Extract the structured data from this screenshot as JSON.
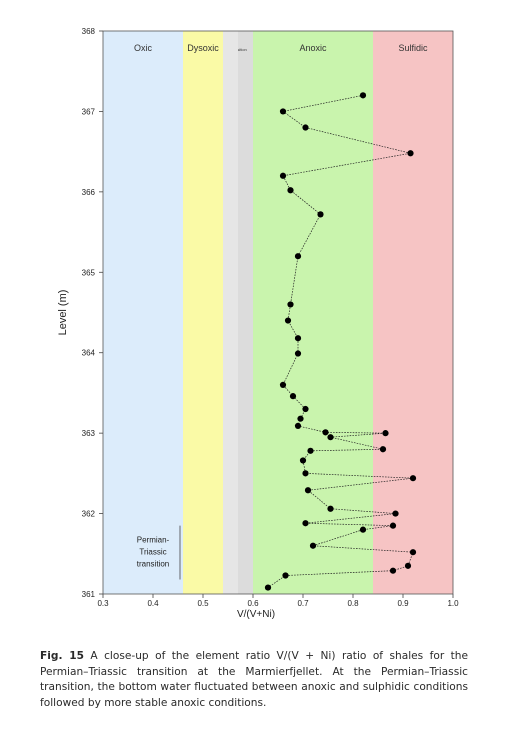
{
  "chart_data": {
    "type": "scatter",
    "ylabel": "Level (m)",
    "xlabel": "V/(V+Ni)",
    "xlim": [
      0.3,
      1.0
    ],
    "ylim": [
      361,
      368
    ],
    "x_ticks": [
      "0.3",
      "0.4",
      "0.5",
      "0.6",
      "0.7",
      "0.8",
      "0.9",
      "1.0"
    ],
    "y_ticks": [
      "361",
      "362",
      "363",
      "364",
      "365",
      "366",
      "367",
      "368"
    ],
    "zones": [
      {
        "label": "Oxic",
        "from": 0.3,
        "to": 0.46,
        "color": "#dcecfb"
      },
      {
        "label": "Dysoxic",
        "from": 0.46,
        "to": 0.54,
        "color": "#fafaa6"
      },
      {
        "label": "Transition",
        "from": 0.54,
        "to": 0.6,
        "color": "#dcdcdc"
      },
      {
        "label": "Anoxic",
        "from": 0.6,
        "to": 0.84,
        "color": "#c9f4ad"
      },
      {
        "label": "Sulfidic",
        "from": 0.84,
        "to": 1.0,
        "color": "#f6c4c4"
      }
    ],
    "annotation": {
      "lines": [
        "Permian-",
        "Triassic",
        "transition"
      ],
      "from": 361.18,
      "to": 361.85
    },
    "series": [
      {
        "points": [
          [
            0.82,
            367.2
          ],
          [
            0.66,
            367.0
          ],
          [
            0.705,
            366.8
          ],
          [
            0.915,
            366.48
          ],
          [
            0.66,
            366.2
          ],
          [
            0.675,
            366.02
          ],
          [
            0.735,
            365.72
          ],
          [
            0.69,
            365.2
          ],
          [
            0.675,
            364.6
          ],
          [
            0.67,
            364.4
          ],
          [
            0.69,
            364.18
          ],
          [
            0.69,
            363.99
          ],
          [
            0.66,
            363.6
          ],
          [
            0.68,
            363.46
          ],
          [
            0.705,
            363.3
          ],
          [
            0.695,
            363.18
          ],
          [
            0.69,
            363.09
          ],
          [
            0.745,
            363.01
          ],
          [
            0.865,
            363.0
          ],
          [
            0.755,
            362.95
          ],
          [
            0.86,
            362.8
          ],
          [
            0.715,
            362.78
          ],
          [
            0.7,
            362.66
          ],
          [
            0.705,
            362.5
          ],
          [
            0.92,
            362.44
          ],
          [
            0.71,
            362.29
          ],
          [
            0.755,
            362.06
          ],
          [
            0.885,
            362.0
          ],
          [
            0.705,
            361.88
          ],
          [
            0.88,
            361.85
          ],
          [
            0.82,
            361.8
          ],
          [
            0.72,
            361.6
          ],
          [
            0.92,
            361.52
          ],
          [
            0.91,
            361.35
          ],
          [
            0.88,
            361.29
          ],
          [
            0.665,
            361.23
          ],
          [
            0.63,
            361.08
          ]
        ]
      }
    ]
  },
  "caption": {
    "lead": "Fig. 15",
    "text": " A close-up of the element ratio V/(V + Ni) ratio of shales for the Permian–Triassic transition at the Marmierfjellet. At the Permian–Triassic transition, the bottom water fluctuated between anoxic and sulphidic conditions followed by more stable anoxic conditions."
  }
}
